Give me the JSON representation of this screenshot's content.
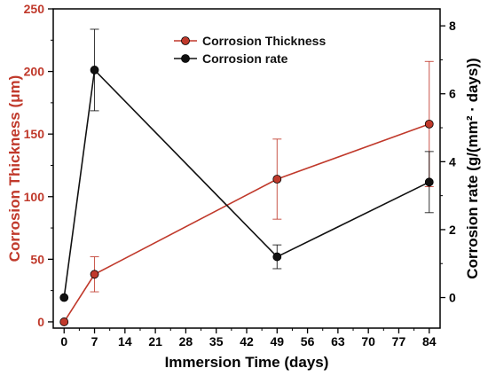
{
  "chart_data": {
    "type": "line",
    "xlabel": "Immersion Time (days)",
    "ylabel_left": "Corrosion Thickness (μm)",
    "ylabel_right": "Corrosion rate (g/(mm² · days))",
    "x_ticks": [
      0,
      7,
      14,
      21,
      28,
      35,
      42,
      49,
      56,
      63,
      70,
      77,
      84
    ],
    "xlim": [
      -2.5,
      86.5
    ],
    "ylim_left": [
      -5,
      250
    ],
    "y_ticks_left": [
      0,
      50,
      100,
      150,
      200,
      250
    ],
    "ylim_right": [
      -0.9,
      8.5
    ],
    "y_ticks_right": [
      0,
      2,
      4,
      6,
      8
    ],
    "legend_position": "top-center",
    "colors": {
      "thickness": "#c0392b",
      "rate": "#111111",
      "axis": "#000000"
    },
    "series": [
      {
        "name": "Corrosion Thickness",
        "axis": "left",
        "x": [
          0,
          7,
          49,
          84
        ],
        "values": [
          0,
          38,
          114,
          158
        ],
        "err": [
          0,
          14,
          32,
          50
        ]
      },
      {
        "name": "Corrosion rate",
        "axis": "right",
        "x": [
          0,
          7,
          49,
          84
        ],
        "values": [
          0.0,
          6.7,
          1.2,
          3.4
        ],
        "err": [
          0,
          1.2,
          0.35,
          0.9
        ]
      }
    ]
  }
}
